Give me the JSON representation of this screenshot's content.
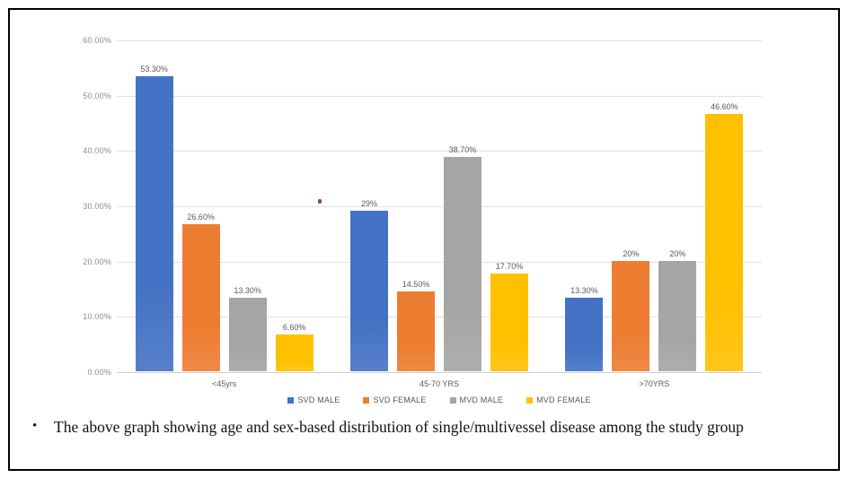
{
  "caption": {
    "bullet": "•",
    "text": "The above graph showing age and sex-based distribution of single/multivessel disease among the study group"
  },
  "annotations": {
    "red_dot_color": "#9e3a38"
  },
  "chart_data": {
    "type": "bar",
    "title": "",
    "xlabel": "",
    "ylabel": "",
    "categories": [
      "<45yrs",
      "45-70 YRS",
      ">70YRS"
    ],
    "series": [
      {
        "name": "SVD MALE",
        "color": "#4472C4",
        "values": [
          53.3,
          29.0,
          13.3
        ],
        "labels": [
          "53.30%",
          "29%",
          "13.30%"
        ]
      },
      {
        "name": "SVD FEMALE",
        "color": "#ED7D31",
        "values": [
          26.6,
          14.5,
          20.0
        ],
        "labels": [
          "26.60%",
          "14.50%",
          "20%"
        ]
      },
      {
        "name": "MVD MALE",
        "color": "#A5A5A5",
        "values": [
          13.3,
          38.7,
          20.0
        ],
        "labels": [
          "13.30%",
          "38.70%",
          "20%"
        ]
      },
      {
        "name": "MVD FEMALE",
        "color": "#FFC000",
        "values": [
          6.6,
          17.7,
          46.6
        ],
        "labels": [
          "6.60%",
          "17.70%",
          "46.60%"
        ]
      }
    ],
    "y_axis": {
      "min": 0,
      "max": 60,
      "step": 10,
      "tick_labels": [
        "0.00%",
        "10.00%",
        "20.00%",
        "30.00%",
        "40.00%",
        "50.00%",
        "60.00%"
      ]
    },
    "grid": true,
    "legend_position": "bottom"
  }
}
